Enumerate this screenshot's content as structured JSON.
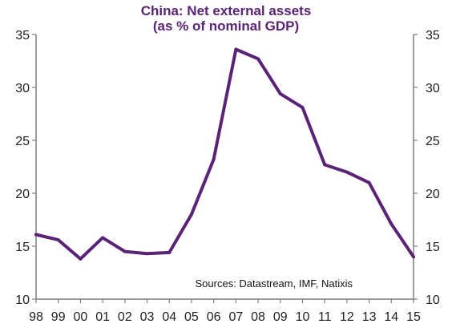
{
  "chart_data": {
    "type": "line",
    "title": "China: Net external assets",
    "subtitle": "(as % of nominal GDP)",
    "xlabel": "",
    "ylabel": "",
    "source": "Sources: Datastream, IMF, Natixis",
    "categories": [
      "98",
      "99",
      "00",
      "01",
      "02",
      "03",
      "04",
      "05",
      "06",
      "07",
      "08",
      "09",
      "10",
      "11",
      "12",
      "13",
      "14",
      "15"
    ],
    "series": [
      {
        "values": [
          16.1,
          15.6,
          13.8,
          15.8,
          14.5,
          14.3,
          14.4,
          18.0,
          23.2,
          33.6,
          32.7,
          29.4,
          28.1,
          22.7,
          22.0,
          21.0,
          17.1,
          14.0
        ]
      }
    ],
    "ylim": [
      10,
      35
    ],
    "yticks": [
      "10",
      "15",
      "20",
      "25",
      "30",
      "35"
    ],
    "y_axis_sides": "left and right",
    "grid": false,
    "legend": "none",
    "colors": {
      "line": "#5b2376",
      "title": "#5b2376",
      "axis": "#7f7f7f",
      "text": "#222222"
    }
  }
}
